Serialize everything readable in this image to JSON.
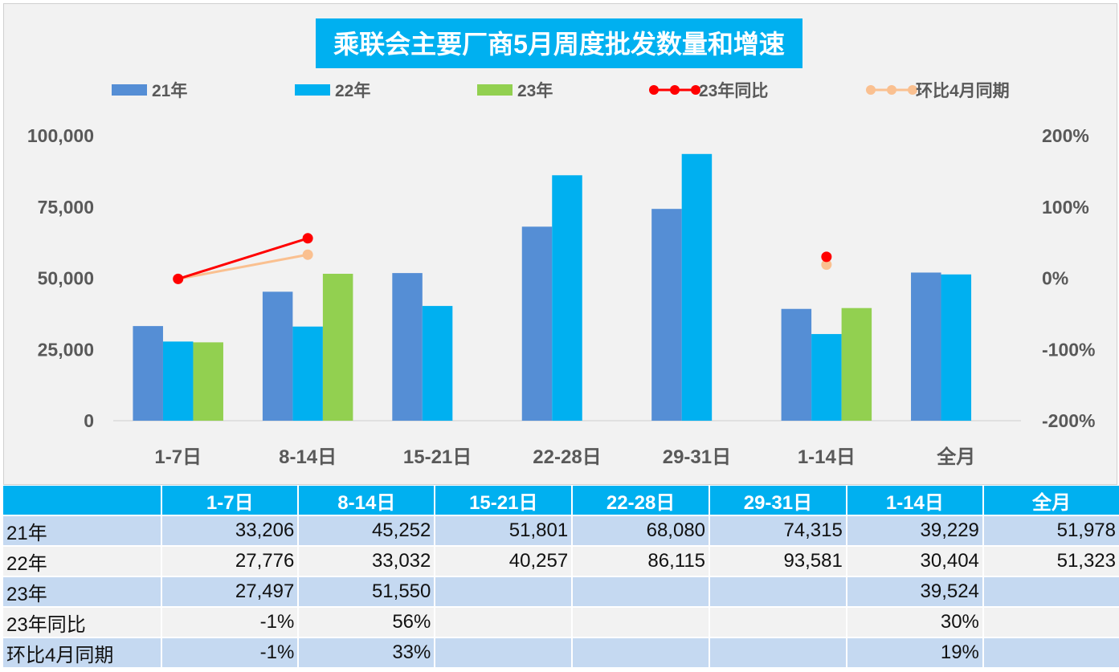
{
  "chart_data": {
    "type": "bar",
    "title": "乘联会主要厂商5月周度批发数量和增速",
    "categories": [
      "1-7日",
      "8-14日",
      "15-21日",
      "22-28日",
      "29-31日",
      "1-14日",
      "全月"
    ],
    "series": [
      {
        "name": "21年",
        "kind": "bar",
        "color": "#558ed5",
        "values": [
          33206,
          45252,
          51801,
          68080,
          74315,
          39229,
          51978
        ]
      },
      {
        "name": "22年",
        "kind": "bar",
        "color": "#00b0f0",
        "values": [
          27776,
          33032,
          40257,
          86115,
          93581,
          30404,
          51323
        ]
      },
      {
        "name": "23年",
        "kind": "bar",
        "color": "#92d050",
        "values": [
          27497,
          51550,
          null,
          null,
          null,
          39524,
          null
        ]
      },
      {
        "name": "23年同比",
        "kind": "line",
        "axis": "right",
        "color": "#ff0000",
        "values": [
          -0.01,
          0.56,
          null,
          null,
          null,
          0.3,
          null
        ]
      },
      {
        "name": "环比4月同期",
        "kind": "line",
        "axis": "right",
        "color": "#fac090",
        "values": [
          -0.01,
          0.33,
          null,
          null,
          null,
          0.19,
          null
        ]
      }
    ],
    "y_left": {
      "range": [
        0,
        100000
      ],
      "ticks": [
        "0",
        "25,000",
        "50,000",
        "75,000",
        "100,000"
      ]
    },
    "y_right": {
      "range": [
        -2,
        2
      ],
      "ticks": [
        "-200%",
        "-100%",
        "0%",
        "100%",
        "200%"
      ]
    },
    "legend": "top",
    "grid": false
  },
  "table": {
    "header": [
      "",
      "1-7日",
      "8-14日",
      "15-21日",
      "22-28日",
      "29-31日",
      "1-14日",
      "全月"
    ],
    "rows": [
      [
        "21年",
        "33,206",
        "45,252",
        "51,801",
        "68,080",
        "74,315",
        "39,229",
        "51,978"
      ],
      [
        "22年",
        "27,776",
        "33,032",
        "40,257",
        "86,115",
        "93,581",
        "30,404",
        "51,323"
      ],
      [
        "23年",
        "27,497",
        "51,550",
        "",
        "",
        "",
        "39,524",
        ""
      ],
      [
        "23年同比",
        "-1%",
        "56%",
        "",
        "",
        "",
        "30%",
        ""
      ],
      [
        "环比4月同期",
        "-1%",
        "33%",
        "",
        "",
        "",
        "19%",
        ""
      ]
    ]
  }
}
